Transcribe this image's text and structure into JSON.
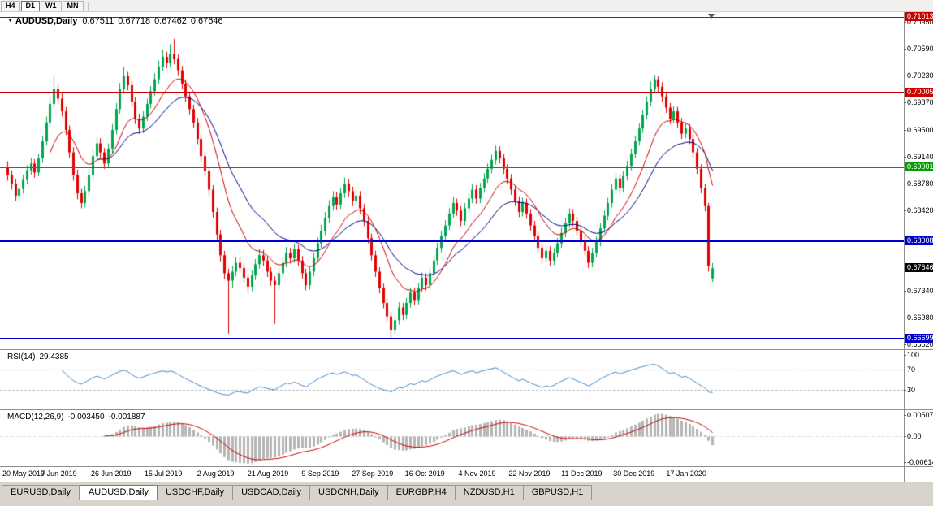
{
  "toolbar": {
    "timeframes": [
      {
        "label": "H4",
        "active": false
      },
      {
        "label": "D1",
        "active": true
      },
      {
        "label": "W1",
        "active": false
      },
      {
        "label": "MN",
        "active": false
      }
    ]
  },
  "chart": {
    "title": {
      "marker": "▼",
      "symbol": "AUDUSD,Daily",
      "open": "0.67511",
      "high": "0.67718",
      "low": "0.67462",
      "close": "0.67646"
    },
    "colors": {
      "background": "#ffffff",
      "up": "#00a550",
      "down": "#e00000",
      "ma_fast": "#cc0000",
      "ma_slow": "#000080",
      "rsi_line": "#4688c8",
      "rsi_level": "#b8b8b8",
      "macd_hist": "#b4b4b4",
      "macd_signal": "#cc0000",
      "level_red": "#cc0000",
      "level_green": "#00a000",
      "level_blue": "#0000cc",
      "current_badge": "#000000"
    },
    "price_axis": {
      "ticks": [
        "0.70950",
        "0.70590",
        "0.70230",
        "0.69870",
        "0.69500",
        "0.69140",
        "0.68780",
        "0.68420",
        "0.67340",
        "0.66980",
        "0.66620"
      ],
      "badges": [
        {
          "value": "0.71013",
          "color": "#cc0000"
        },
        {
          "value": "0.70005",
          "color": "#cc0000"
        },
        {
          "value": "0.69001",
          "color": "#00a000"
        },
        {
          "value": "0.68008",
          "color": "#0000cc"
        },
        {
          "value": "0.67646",
          "color": "#000000"
        },
        {
          "value": "0.66699",
          "color": "#0000cc"
        }
      ]
    }
  },
  "rsi_panel": {
    "label": "RSI(14)",
    "value": "29.4385",
    "axis": [
      "100",
      "70",
      "30"
    ],
    "levels": [
      70,
      30
    ]
  },
  "macd_panel": {
    "label": "MACD(12,26,9)",
    "value_main": "-0.003450",
    "value_signal": "-0.001887",
    "axis": [
      "0.005076",
      "0.00",
      "-0.006148"
    ]
  },
  "tabs": [
    {
      "label": "EURUSD,Daily",
      "active": false
    },
    {
      "label": "AUDUSD,Daily",
      "active": true
    },
    {
      "label": "USDCHF,Daily",
      "active": false
    },
    {
      "label": "USDCAD,Daily",
      "active": false
    },
    {
      "label": "USDCNH,Daily",
      "active": false
    },
    {
      "label": "EURGBP,H4",
      "active": false
    },
    {
      "label": "NZDUSD,H1",
      "active": false
    },
    {
      "label": "GBPUSD,H1",
      "active": false
    }
  ],
  "chart_data": {
    "type": "candlestick",
    "title": "AUDUSD,Daily",
    "symbol": "AUDUSD",
    "timeframe": "D1",
    "current_bar": {
      "open": 0.67511,
      "high": 0.67718,
      "low": 0.67462,
      "close": 0.67646
    },
    "ylim": [
      0.6656,
      0.7108
    ],
    "x_labels": [
      "20 May 2019",
      "7 Jun 2019",
      "26 Jun 2019",
      "15 Jul 2019",
      "2 Aug 2019",
      "21 Aug 2019",
      "9 Sep 2019",
      "27 Sep 2019",
      "16 Oct 2019",
      "4 Nov 2019",
      "22 Nov 2019",
      "11 Dec 2019",
      "30 Dec 2019",
      "17 Jan 2020"
    ],
    "levels": [
      {
        "price": 0.71013,
        "color": "#cc0000",
        "width": 1
      },
      {
        "price": 0.70005,
        "color": "#cc0000",
        "width": 2
      },
      {
        "price": 0.69001,
        "color": "#00a000",
        "width": 2
      },
      {
        "price": 0.68008,
        "color": "#0000cc",
        "width": 2
      },
      {
        "price": 0.66699,
        "color": "#0000cc",
        "width": 2
      }
    ],
    "indicators": {
      "moving_averages": [
        {
          "period": 12,
          "color": "#cc0000"
        },
        {
          "period": 24,
          "color": "#000080"
        }
      ],
      "rsi": {
        "period": 14,
        "value": 29.4385,
        "scale": [
          0,
          100
        ],
        "levels": [
          30,
          70
        ]
      },
      "macd": {
        "fast": 12,
        "slow": 26,
        "signal": 9,
        "value": -0.00345,
        "signal_value": -0.001887
      }
    },
    "ohlc": [
      [
        0.69,
        0.6908,
        0.6882,
        0.689
      ],
      [
        0.689,
        0.6896,
        0.687,
        0.6878
      ],
      [
        0.6878,
        0.6884,
        0.6855,
        0.6862
      ],
      [
        0.6862,
        0.6878,
        0.6856,
        0.6871
      ],
      [
        0.6871,
        0.689,
        0.6865,
        0.6883
      ],
      [
        0.6883,
        0.6903,
        0.6877,
        0.6896
      ],
      [
        0.6896,
        0.6913,
        0.689,
        0.6905
      ],
      [
        0.6905,
        0.6911,
        0.6886,
        0.6893
      ],
      [
        0.6893,
        0.6918,
        0.6888,
        0.6912
      ],
      [
        0.6912,
        0.6942,
        0.6906,
        0.6935
      ],
      [
        0.6935,
        0.6968,
        0.6929,
        0.696
      ],
      [
        0.696,
        0.6994,
        0.6954,
        0.6985
      ],
      [
        0.6985,
        0.7022,
        0.6979,
        0.7005
      ],
      [
        0.7005,
        0.7012,
        0.6985,
        0.6992
      ],
      [
        0.6992,
        0.6999,
        0.6968,
        0.6975
      ],
      [
        0.6975,
        0.6981,
        0.6943,
        0.695
      ],
      [
        0.695,
        0.6956,
        0.6913,
        0.692
      ],
      [
        0.692,
        0.6927,
        0.6882,
        0.689
      ],
      [
        0.689,
        0.6897,
        0.6857,
        0.6865
      ],
      [
        0.6865,
        0.6871,
        0.6845,
        0.6852
      ],
      [
        0.6852,
        0.6875,
        0.6846,
        0.6868
      ],
      [
        0.6868,
        0.6898,
        0.6862,
        0.689
      ],
      [
        0.689,
        0.6923,
        0.6884,
        0.6915
      ],
      [
        0.6915,
        0.694,
        0.6909,
        0.6932
      ],
      [
        0.6932,
        0.6939,
        0.6913,
        0.692
      ],
      [
        0.692,
        0.6926,
        0.6898,
        0.6905
      ],
      [
        0.6905,
        0.6932,
        0.6899,
        0.6925
      ],
      [
        0.6925,
        0.6958,
        0.6919,
        0.695
      ],
      [
        0.695,
        0.6986,
        0.6944,
        0.6978
      ],
      [
        0.6978,
        0.7013,
        0.6972,
        0.7005
      ],
      [
        0.7005,
        0.7035,
        0.6999,
        0.7022
      ],
      [
        0.7022,
        0.7028,
        0.7003,
        0.701
      ],
      [
        0.701,
        0.7016,
        0.6981,
        0.6988
      ],
      [
        0.6988,
        0.6994,
        0.6958,
        0.6965
      ],
      [
        0.6965,
        0.6972,
        0.6945,
        0.6952
      ],
      [
        0.6952,
        0.6975,
        0.6946,
        0.6968
      ],
      [
        0.6968,
        0.6992,
        0.6962,
        0.6985
      ],
      [
        0.6985,
        0.7009,
        0.6979,
        0.7002
      ],
      [
        0.7002,
        0.7026,
        0.6996,
        0.7018
      ],
      [
        0.7018,
        0.7043,
        0.7012,
        0.7035
      ],
      [
        0.7035,
        0.7058,
        0.7029,
        0.7048
      ],
      [
        0.7048,
        0.7055,
        0.7033,
        0.704
      ],
      [
        0.704,
        0.7065,
        0.7034,
        0.7052
      ],
      [
        0.7052,
        0.7072,
        0.7038,
        0.7045
      ],
      [
        0.7045,
        0.7051,
        0.7023,
        0.703
      ],
      [
        0.703,
        0.7036,
        0.7005,
        0.7012
      ],
      [
        0.7012,
        0.7018,
        0.6988,
        0.6995
      ],
      [
        0.6995,
        0.7001,
        0.6971,
        0.6978
      ],
      [
        0.6978,
        0.6984,
        0.6953,
        0.696
      ],
      [
        0.696,
        0.6966,
        0.6931,
        0.6938
      ],
      [
        0.6938,
        0.6944,
        0.6908,
        0.6915
      ],
      [
        0.6915,
        0.6921,
        0.6888,
        0.6895
      ],
      [
        0.6895,
        0.6901,
        0.6862,
        0.687
      ],
      [
        0.687,
        0.6876,
        0.6832,
        0.684
      ],
      [
        0.684,
        0.6846,
        0.6802,
        0.681
      ],
      [
        0.681,
        0.6816,
        0.6774,
        0.6782
      ],
      [
        0.6782,
        0.6788,
        0.675,
        0.6758
      ],
      [
        0.6758,
        0.6764,
        0.6677,
        0.6748
      ],
      [
        0.6748,
        0.6768,
        0.6738,
        0.676
      ],
      [
        0.676,
        0.678,
        0.6754,
        0.6772
      ],
      [
        0.6772,
        0.6779,
        0.6758,
        0.6765
      ],
      [
        0.6765,
        0.6771,
        0.6745,
        0.6752
      ],
      [
        0.6752,
        0.6758,
        0.6732,
        0.674
      ],
      [
        0.674,
        0.6762,
        0.6734,
        0.6755
      ],
      [
        0.6755,
        0.6777,
        0.6749,
        0.677
      ],
      [
        0.677,
        0.679,
        0.6764,
        0.6782
      ],
      [
        0.6782,
        0.6789,
        0.6768,
        0.6775
      ],
      [
        0.6775,
        0.6781,
        0.6753,
        0.676
      ],
      [
        0.676,
        0.6766,
        0.6741,
        0.6748
      ],
      [
        0.6748,
        0.6754,
        0.669,
        0.6742
      ],
      [
        0.6742,
        0.6765,
        0.6736,
        0.6758
      ],
      [
        0.6758,
        0.6779,
        0.6752,
        0.6772
      ],
      [
        0.6772,
        0.6793,
        0.6766,
        0.6785
      ],
      [
        0.6785,
        0.6792,
        0.6771,
        0.6778
      ],
      [
        0.6778,
        0.6797,
        0.6772,
        0.679
      ],
      [
        0.679,
        0.6796,
        0.6768,
        0.6775
      ],
      [
        0.6775,
        0.6781,
        0.6751,
        0.6758
      ],
      [
        0.6758,
        0.6764,
        0.6735,
        0.6742
      ],
      [
        0.6742,
        0.6767,
        0.6736,
        0.676
      ],
      [
        0.676,
        0.6785,
        0.6754,
        0.6778
      ],
      [
        0.6778,
        0.6806,
        0.6772,
        0.6798
      ],
      [
        0.6798,
        0.6823,
        0.6792,
        0.6815
      ],
      [
        0.6815,
        0.684,
        0.6809,
        0.6832
      ],
      [
        0.6832,
        0.6856,
        0.6826,
        0.6848
      ],
      [
        0.6848,
        0.6868,
        0.6842,
        0.686
      ],
      [
        0.686,
        0.6867,
        0.6843,
        0.685
      ],
      [
        0.685,
        0.6872,
        0.6844,
        0.6865
      ],
      [
        0.6865,
        0.6886,
        0.6859,
        0.6878
      ],
      [
        0.6878,
        0.6884,
        0.6861,
        0.6868
      ],
      [
        0.6868,
        0.6874,
        0.6848,
        0.6855
      ],
      [
        0.6855,
        0.6869,
        0.6849,
        0.6862
      ],
      [
        0.6862,
        0.6868,
        0.6838,
        0.6845
      ],
      [
        0.6845,
        0.6851,
        0.6821,
        0.6828
      ],
      [
        0.6828,
        0.6834,
        0.6798,
        0.6805
      ],
      [
        0.6805,
        0.6811,
        0.6775,
        0.6782
      ],
      [
        0.6782,
        0.6788,
        0.6753,
        0.676
      ],
      [
        0.676,
        0.6766,
        0.6731,
        0.6738
      ],
      [
        0.6738,
        0.6744,
        0.6711,
        0.6718
      ],
      [
        0.6718,
        0.6724,
        0.6692,
        0.67
      ],
      [
        0.67,
        0.6706,
        0.667,
        0.6682
      ],
      [
        0.6682,
        0.6702,
        0.6676,
        0.6695
      ],
      [
        0.6695,
        0.6719,
        0.6689,
        0.6712
      ],
      [
        0.6712,
        0.6718,
        0.6695,
        0.6702
      ],
      [
        0.6702,
        0.6725,
        0.6696,
        0.6718
      ],
      [
        0.6718,
        0.6739,
        0.6712,
        0.6732
      ],
      [
        0.6732,
        0.6738,
        0.6715,
        0.6722
      ],
      [
        0.6722,
        0.6745,
        0.6716,
        0.6738
      ],
      [
        0.6738,
        0.6759,
        0.6732,
        0.6752
      ],
      [
        0.6752,
        0.6758,
        0.6735,
        0.6742
      ],
      [
        0.6742,
        0.6765,
        0.6736,
        0.6758
      ],
      [
        0.6758,
        0.6782,
        0.6752,
        0.6775
      ],
      [
        0.6775,
        0.6799,
        0.6769,
        0.6792
      ],
      [
        0.6792,
        0.6815,
        0.6786,
        0.6808
      ],
      [
        0.6808,
        0.6829,
        0.6802,
        0.6822
      ],
      [
        0.6822,
        0.6845,
        0.6816,
        0.6838
      ],
      [
        0.6838,
        0.686,
        0.6832,
        0.6852
      ],
      [
        0.6852,
        0.6858,
        0.6835,
        0.6842
      ],
      [
        0.6842,
        0.6848,
        0.6821,
        0.6828
      ],
      [
        0.6828,
        0.6852,
        0.6822,
        0.6845
      ],
      [
        0.6845,
        0.6865,
        0.6839,
        0.6858
      ],
      [
        0.6858,
        0.6877,
        0.6852,
        0.687
      ],
      [
        0.687,
        0.6876,
        0.6851,
        0.6858
      ],
      [
        0.6858,
        0.6879,
        0.6852,
        0.6872
      ],
      [
        0.6872,
        0.6892,
        0.6866,
        0.6885
      ],
      [
        0.6885,
        0.6905,
        0.6879,
        0.6898
      ],
      [
        0.6898,
        0.6917,
        0.6892,
        0.691
      ],
      [
        0.691,
        0.6929,
        0.6904,
        0.6922
      ],
      [
        0.6922,
        0.6928,
        0.6905,
        0.6912
      ],
      [
        0.6912,
        0.6918,
        0.6891,
        0.6898
      ],
      [
        0.6898,
        0.6904,
        0.6878,
        0.6885
      ],
      [
        0.6885,
        0.6891,
        0.6863,
        0.687
      ],
      [
        0.687,
        0.6876,
        0.6848,
        0.6855
      ],
      [
        0.6855,
        0.6861,
        0.6833,
        0.684
      ],
      [
        0.684,
        0.6859,
        0.6834,
        0.6852
      ],
      [
        0.6852,
        0.6858,
        0.6831,
        0.6838
      ],
      [
        0.6838,
        0.6844,
        0.6815,
        0.6822
      ],
      [
        0.6822,
        0.6828,
        0.6801,
        0.6808
      ],
      [
        0.6808,
        0.6814,
        0.6785,
        0.6792
      ],
      [
        0.6792,
        0.6798,
        0.677,
        0.6778
      ],
      [
        0.6778,
        0.6795,
        0.6772,
        0.6788
      ],
      [
        0.6788,
        0.6794,
        0.6768,
        0.6775
      ],
      [
        0.6775,
        0.6792,
        0.6769,
        0.6785
      ],
      [
        0.6785,
        0.6805,
        0.6779,
        0.6798
      ],
      [
        0.6798,
        0.6819,
        0.6792,
        0.6812
      ],
      [
        0.6812,
        0.6832,
        0.6806,
        0.6825
      ],
      [
        0.6825,
        0.6845,
        0.6819,
        0.6838
      ],
      [
        0.6838,
        0.6844,
        0.6821,
        0.6828
      ],
      [
        0.6828,
        0.6834,
        0.6808,
        0.6815
      ],
      [
        0.6815,
        0.6821,
        0.6795,
        0.6802
      ],
      [
        0.6802,
        0.6808,
        0.6781,
        0.6788
      ],
      [
        0.6788,
        0.6794,
        0.6765,
        0.6772
      ],
      [
        0.6772,
        0.6792,
        0.6766,
        0.6785
      ],
      [
        0.6785,
        0.6807,
        0.6779,
        0.68
      ],
      [
        0.68,
        0.6825,
        0.6794,
        0.6818
      ],
      [
        0.6818,
        0.6842,
        0.6812,
        0.6835
      ],
      [
        0.6835,
        0.6859,
        0.6829,
        0.6852
      ],
      [
        0.6852,
        0.6877,
        0.6846,
        0.687
      ],
      [
        0.687,
        0.6892,
        0.6864,
        0.6885
      ],
      [
        0.6885,
        0.6891,
        0.6865,
        0.6872
      ],
      [
        0.6872,
        0.6895,
        0.6866,
        0.6888
      ],
      [
        0.6888,
        0.6909,
        0.6882,
        0.6902
      ],
      [
        0.6902,
        0.6925,
        0.6896,
        0.6918
      ],
      [
        0.6918,
        0.6942,
        0.6912,
        0.6935
      ],
      [
        0.6935,
        0.6959,
        0.6929,
        0.6952
      ],
      [
        0.6952,
        0.6977,
        0.6946,
        0.697
      ],
      [
        0.697,
        0.6995,
        0.6964,
        0.6988
      ],
      [
        0.6988,
        0.7015,
        0.6982,
        0.7005
      ],
      [
        0.7005,
        0.7024,
        0.6999,
        0.7018
      ],
      [
        0.7018,
        0.7022,
        0.7001,
        0.7008
      ],
      [
        0.7008,
        0.7014,
        0.6988,
        0.6995
      ],
      [
        0.6995,
        0.7001,
        0.6973,
        0.698
      ],
      [
        0.698,
        0.6986,
        0.6958,
        0.6965
      ],
      [
        0.6965,
        0.6982,
        0.6959,
        0.6975
      ],
      [
        0.6975,
        0.6981,
        0.6953,
        0.696
      ],
      [
        0.696,
        0.6966,
        0.6938,
        0.6945
      ],
      [
        0.6945,
        0.6959,
        0.6939,
        0.6952
      ],
      [
        0.6952,
        0.6958,
        0.6931,
        0.6938
      ],
      [
        0.6938,
        0.6944,
        0.6913,
        0.692
      ],
      [
        0.692,
        0.6926,
        0.6891,
        0.6898
      ],
      [
        0.6898,
        0.6904,
        0.6865,
        0.6872
      ],
      [
        0.6872,
        0.6878,
        0.6841,
        0.6848
      ],
      [
        0.6848,
        0.6852,
        0.676,
        0.6768
      ],
      [
        0.67511,
        0.67718,
        0.67462,
        0.67646
      ]
    ]
  }
}
